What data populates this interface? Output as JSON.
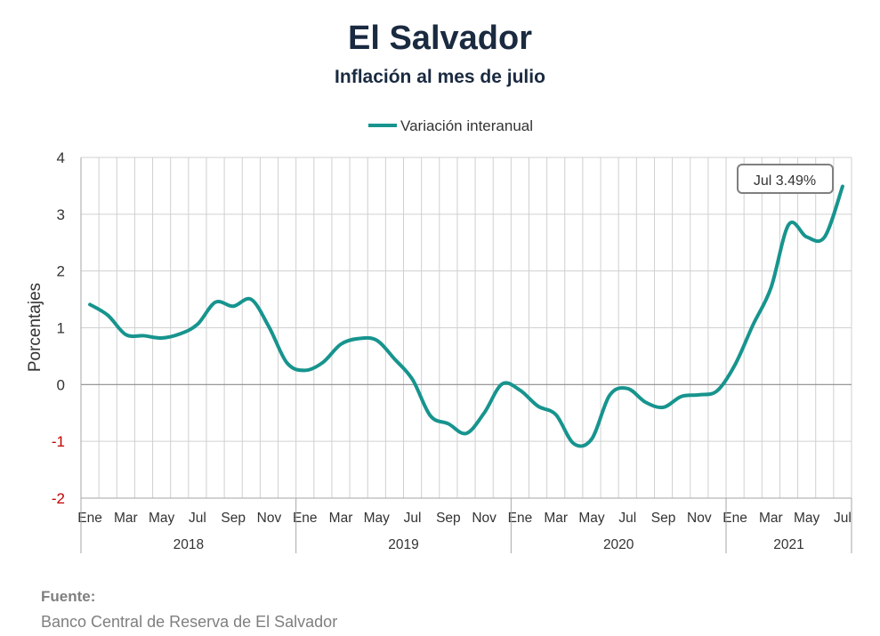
{
  "title": "El Salvador",
  "subtitle": "Inflación al mes de julio",
  "source": {
    "heading": "Fuente:",
    "text": "Banco Central de Reserva de El Salvador"
  },
  "colors": {
    "series": "#17948e",
    "negative_tick": "#c00000",
    "grid": "#d0d0d0",
    "axis": "#a6a6a6"
  },
  "chart_data": {
    "type": "line",
    "title": "El Salvador",
    "subtitle": "Inflación al mes de julio",
    "ylabel": "Porcentajes",
    "ylim": [
      -2,
      4
    ],
    "yticks": [
      -2,
      -1,
      0,
      1,
      2,
      3,
      4
    ],
    "grid": true,
    "legend": "top-center",
    "month_tick_labels": [
      "Ene",
      "Mar",
      "May",
      "Jul",
      "Sep",
      "Nov",
      "Ene",
      "Mar",
      "May",
      "Jul",
      "Sep",
      "Nov",
      "Ene",
      "Mar",
      "May",
      "Jul",
      "Sep",
      "Nov",
      "Ene",
      "Mar",
      "May",
      "Jul"
    ],
    "years": [
      "2018",
      "2019",
      "2020",
      "2021"
    ],
    "x": [
      "2018-01",
      "2018-02",
      "2018-03",
      "2018-04",
      "2018-05",
      "2018-06",
      "2018-07",
      "2018-08",
      "2018-09",
      "2018-10",
      "2018-11",
      "2018-12",
      "2019-01",
      "2019-02",
      "2019-03",
      "2019-04",
      "2019-05",
      "2019-06",
      "2019-07",
      "2019-08",
      "2019-09",
      "2019-10",
      "2019-11",
      "2019-12",
      "2020-01",
      "2020-02",
      "2020-03",
      "2020-04",
      "2020-05",
      "2020-06",
      "2020-07",
      "2020-08",
      "2020-09",
      "2020-10",
      "2020-11",
      "2020-12",
      "2021-01",
      "2021-02",
      "2021-03",
      "2021-04",
      "2021-05",
      "2021-06",
      "2021-07"
    ],
    "series": [
      {
        "name": "Variación interanual",
        "values": [
          1.41,
          1.22,
          0.88,
          0.86,
          0.82,
          0.89,
          1.06,
          1.45,
          1.38,
          1.5,
          1.01,
          0.38,
          0.25,
          0.39,
          0.71,
          0.81,
          0.78,
          0.45,
          0.09,
          -0.55,
          -0.69,
          -0.86,
          -0.5,
          0.01,
          -0.1,
          -0.38,
          -0.53,
          -1.04,
          -0.96,
          -0.19,
          -0.07,
          -0.31,
          -0.4,
          -0.21,
          -0.18,
          -0.11,
          0.35,
          1.05,
          1.7,
          2.82,
          2.6,
          2.6,
          3.49
        ]
      }
    ],
    "annotation": "Jul 3.49%"
  }
}
